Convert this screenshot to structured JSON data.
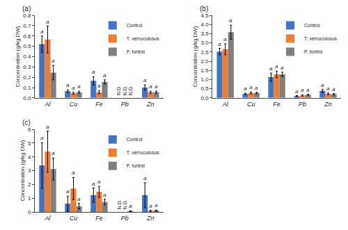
{
  "chart_data": [
    {
      "type": "bar",
      "title": "(a)",
      "ylabel": "Concentration (g/kg DW)",
      "categories": [
        "Al",
        "Cu",
        "Fe",
        "Pb",
        "Zn"
      ],
      "series": [
        {
          "name": "Control",
          "color": "#4472C4",
          "values": [
            0.52,
            0.065,
            0.165,
            null,
            0.1
          ],
          "errors": [
            0.08,
            0.012,
            0.04,
            null,
            0.025
          ],
          "annotations": [
            "a",
            "a",
            "a",
            "N.D.",
            "a"
          ]
        },
        {
          "name": "T. verruculosus",
          "color": "#ED7D31",
          "values": [
            0.565,
            0.045,
            0.055,
            null,
            0.055
          ],
          "errors": [
            0.13,
            0.01,
            0.015,
            null,
            0.01
          ],
          "annotations": [
            "a",
            "a",
            "a",
            "N.D.",
            "a"
          ]
        },
        {
          "name": "P. fortinii",
          "color": "#7F7F7F",
          "values": [
            0.245,
            0.055,
            0.155,
            null,
            0.055
          ],
          "errors": [
            0.07,
            0.01,
            0.02,
            null,
            0.01
          ],
          "annotations": [
            "a",
            "a",
            "a",
            "N.D.",
            "a"
          ]
        }
      ],
      "ylim": [
        0,
        0.8
      ],
      "yticks": [
        {
          "value": 0,
          "label": "0.0"
        },
        0.1,
        0.2,
        0.3,
        0.4,
        0.5,
        0.6,
        0.7,
        0.8
      ],
      "grid": false,
      "legend": "upper right"
    },
    {
      "type": "bar",
      "title": "(b)",
      "ylabel": "Concentration (g/kg DW)",
      "categories": [
        "Al",
        "Cu",
        "Fe",
        "Pb",
        "Zn"
      ],
      "series": [
        {
          "name": "Control",
          "color": "#4472C4",
          "values": [
            2.52,
            0.22,
            1.13,
            0.095,
            0.38
          ],
          "errors": [
            0.18,
            0.04,
            0.22,
            0.03,
            0.08
          ],
          "annotations": [
            "a",
            "a",
            "a",
            "a",
            "a"
          ]
        },
        {
          "name": "T. verruculosus",
          "color": "#ED7D31",
          "values": [
            2.65,
            0.27,
            1.28,
            0.135,
            0.22
          ],
          "errors": [
            0.3,
            0.05,
            0.18,
            0.04,
            0.05
          ],
          "annotations": [
            "a",
            "a",
            "a",
            "a",
            "a"
          ]
        },
        {
          "name": "P. fortinii",
          "color": "#7F7F7F",
          "values": [
            3.58,
            0.27,
            1.28,
            0.165,
            0.2
          ],
          "errors": [
            0.38,
            0.04,
            0.12,
            0.03,
            0.04
          ],
          "annotations": [
            "a",
            "a",
            "a",
            "a",
            "a"
          ]
        }
      ],
      "ylim": [
        0,
        4.5
      ],
      "yticks": [
        {
          "value": 0,
          "label": "0.0"
        },
        0.5,
        {
          "value": 1,
          "label": "1.0"
        },
        1.5,
        {
          "value": 2,
          "label": "2.0"
        },
        2.5,
        {
          "value": 3,
          "label": "3.0"
        },
        3.5,
        {
          "value": 4,
          "label": "4.0"
        },
        4.5
      ],
      "grid": false,
      "legend": "upper right"
    },
    {
      "type": "bar",
      "title": "(c)",
      "ylabel": "Concentration (g/kg DW)",
      "categories": [
        "Al",
        "Cu",
        "Fe",
        "Pb",
        "Zn"
      ],
      "series": [
        {
          "name": "Control",
          "color": "#4472C4",
          "values": [
            3.38,
            0.6,
            1.22,
            null,
            1.22
          ],
          "errors": [
            1.65,
            0.55,
            0.52,
            null,
            0.9
          ],
          "annotations": [
            "a",
            "a",
            "a",
            "N.D.",
            "a"
          ]
        },
        {
          "name": "T. verruculosus",
          "color": "#ED7D31",
          "values": [
            4.38,
            1.7,
            1.46,
            null,
            0.08
          ],
          "errors": [
            1.5,
            0.8,
            0.4,
            null,
            0.04
          ],
          "annotations": [
            "a",
            "a",
            "a",
            "N.D.",
            "a"
          ]
        },
        {
          "name": "P. fortinii",
          "color": "#7F7F7F",
          "values": [
            3.12,
            0.42,
            0.72,
            0.06,
            0.1
          ],
          "errors": [
            0.8,
            0.2,
            0.2,
            0.02,
            0.04
          ],
          "annotations": [
            "a",
            "a",
            "a",
            "a",
            "a"
          ]
        }
      ],
      "ylim": [
        0,
        6
      ],
      "yticks": [
        0,
        1,
        2,
        3,
        4,
        5,
        6
      ],
      "grid": false,
      "legend": "upper right"
    }
  ]
}
